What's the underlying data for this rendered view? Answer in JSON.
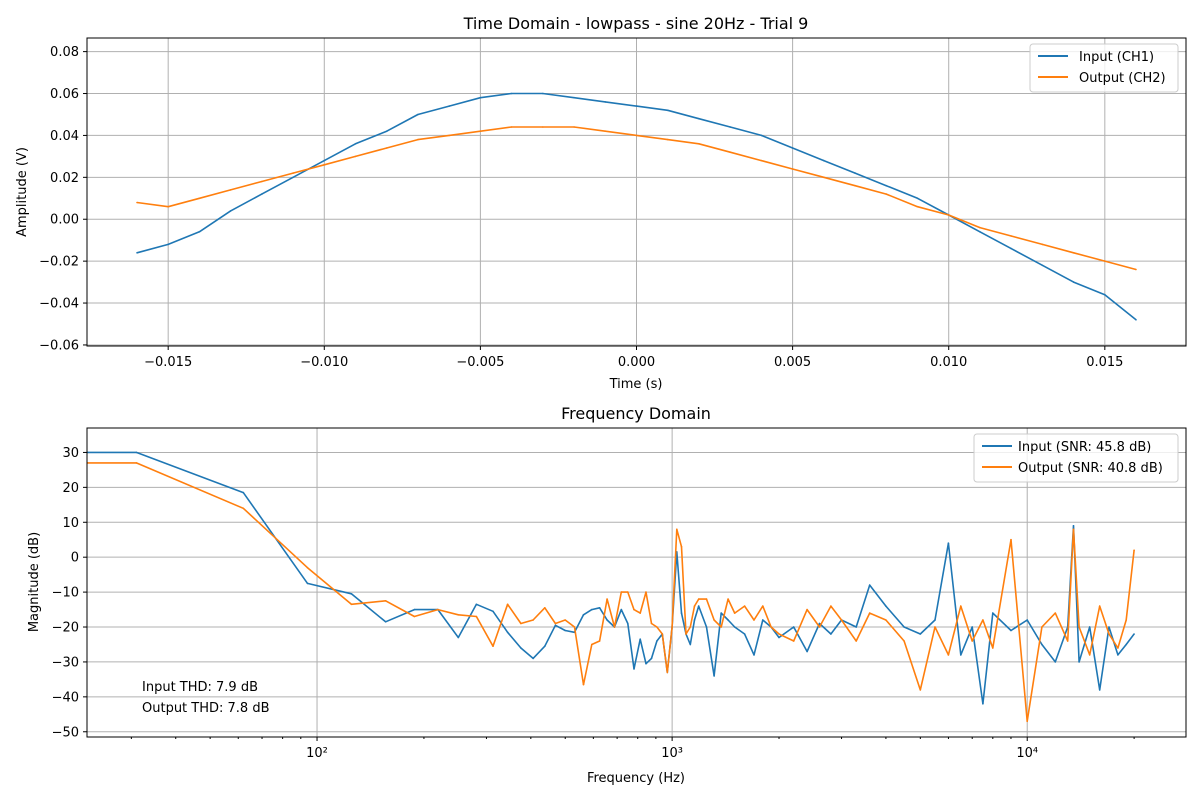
{
  "chart_data": [
    {
      "type": "line",
      "title": "Time Domain - lowpass - sine 20Hz - Trial 9",
      "xlabel": "Time (s)",
      "ylabel": "Amplitude (V)",
      "xlim": [
        -0.0176,
        0.0176
      ],
      "ylim": [
        -0.0605,
        0.0865
      ],
      "xticks": [
        -0.015,
        -0.01,
        -0.005,
        0.0,
        0.005,
        0.01,
        0.015
      ],
      "xtick_labels": [
        "−0.015",
        "−0.010",
        "−0.005",
        "0.000",
        "0.005",
        "0.010",
        "0.015"
      ],
      "yticks": [
        -0.06,
        -0.04,
        -0.02,
        0.0,
        0.02,
        0.04,
        0.06,
        0.08
      ],
      "ytick_labels": [
        "−0.06",
        "−0.04",
        "−0.02",
        "0.00",
        "0.02",
        "0.04",
        "0.06",
        "0.08"
      ],
      "grid": true,
      "legend_position": "top-right",
      "series": [
        {
          "name": "Input (CH1)",
          "color": "#1f77b4",
          "x": [
            -0.016,
            -0.015,
            -0.014,
            -0.013,
            -0.012,
            -0.011,
            -0.01,
            -0.009,
            -0.008,
            -0.007,
            -0.006,
            -0.005,
            -0.004,
            -0.003,
            -0.002,
            -0.001,
            0.0,
            0.001,
            0.002,
            0.003,
            0.004,
            0.005,
            0.006,
            0.007,
            0.008,
            0.009,
            0.01,
            0.011,
            0.012,
            0.013,
            0.014,
            0.015,
            0.016
          ],
          "y": [
            -0.016,
            -0.012,
            -0.006,
            0.004,
            0.012,
            0.02,
            0.028,
            0.036,
            0.042,
            0.05,
            0.054,
            0.058,
            0.06,
            0.06,
            0.058,
            0.056,
            0.054,
            0.052,
            0.048,
            0.044,
            0.04,
            0.034,
            0.028,
            0.022,
            0.016,
            0.01,
            0.002,
            -0.006,
            -0.014,
            -0.022,
            -0.03,
            -0.036,
            -0.048
          ]
        },
        {
          "name": "Output (CH2)",
          "color": "#ff7f0e",
          "x": [
            -0.016,
            -0.015,
            -0.014,
            -0.013,
            -0.012,
            -0.011,
            -0.01,
            -0.009,
            -0.008,
            -0.007,
            -0.006,
            -0.005,
            -0.004,
            -0.003,
            -0.002,
            -0.001,
            0.0,
            0.001,
            0.002,
            0.003,
            0.004,
            0.005,
            0.006,
            0.007,
            0.008,
            0.009,
            0.01,
            0.011,
            0.012,
            0.013,
            0.014,
            0.015,
            0.016
          ],
          "y": [
            0.008,
            0.006,
            0.01,
            0.014,
            0.018,
            0.022,
            0.026,
            0.03,
            0.034,
            0.038,
            0.04,
            0.042,
            0.044,
            0.044,
            0.044,
            0.042,
            0.04,
            0.038,
            0.036,
            0.032,
            0.028,
            0.024,
            0.02,
            0.016,
            0.012,
            0.006,
            0.002,
            -0.004,
            -0.008,
            -0.012,
            -0.016,
            -0.02,
            -0.024
          ]
        }
      ]
    },
    {
      "type": "line",
      "title": "Frequency Domain",
      "xlabel": "Frequency (Hz)",
      "ylabel": "Magnitude (dB)",
      "xscale": "log",
      "xlim": [
        22.5,
        28000
      ],
      "ylim": [
        -51.5,
        37
      ],
      "xticks": [
        100,
        1000,
        10000
      ],
      "xtick_labels": [
        "10²",
        "10³",
        "10⁴"
      ],
      "yticks": [
        -50,
        -40,
        -30,
        -20,
        -10,
        0,
        10,
        20,
        30
      ],
      "ytick_labels": [
        "−50",
        "−40",
        "−30",
        "−20",
        "−10",
        "0",
        "10",
        "20",
        "30"
      ],
      "grid": true,
      "legend_position": "top-right",
      "annotations": [
        "Input THD: 7.9 dB",
        "Output THD: 7.8 dB"
      ],
      "series": [
        {
          "name": "Input (SNR: 45.8 dB)",
          "color": "#1f77b4",
          "x": [
            22.5,
            31,
            62,
            94,
            125,
            156,
            188,
            219,
            250,
            281,
            313,
            344,
            375,
            406,
            438,
            469,
            500,
            531,
            563,
            594,
            625,
            656,
            688,
            719,
            750,
            781,
            813,
            844,
            875,
            906,
            938,
            969,
            1000,
            1031,
            1063,
            1094,
            1125,
            1156,
            1188,
            1250,
            1313,
            1375,
            1438,
            1500,
            1600,
            1700,
            1800,
            1900,
            2000,
            2200,
            2400,
            2600,
            2800,
            3000,
            3300,
            3600,
            4000,
            4500,
            5000,
            5500,
            6000,
            6500,
            7000,
            7500,
            8000,
            9000,
            10000,
            11000,
            12000,
            13000,
            13500,
            14000,
            15000,
            16000,
            17000,
            18000,
            19000,
            20000
          ],
          "y": [
            30,
            30,
            18.5,
            -7.5,
            -10.5,
            -18.5,
            -15,
            -15,
            -23,
            -13.5,
            -15.5,
            -21.5,
            -26,
            -29,
            -25.5,
            -19.5,
            -21,
            -21.5,
            -16.5,
            -15,
            -14.5,
            -18,
            -20,
            -15,
            -19,
            -32,
            -23.5,
            -30.5,
            -29,
            -24,
            -22,
            -33,
            -20,
            1.5,
            -16,
            -22,
            -25,
            -18,
            -14,
            -20,
            -34,
            -16,
            -18,
            -20,
            -22,
            -28,
            -18,
            -20,
            -23,
            -20,
            -27,
            -19,
            -22,
            -18,
            -20,
            -8,
            -14,
            -20,
            -22,
            -18,
            4,
            -28,
            -20,
            -42,
            -16,
            -21,
            -18,
            -25,
            -30,
            -20,
            9,
            -30,
            -20,
            -38,
            -20,
            -28,
            -25,
            -22
          ]
        },
        {
          "name": "Output (SNR: 40.8 dB)",
          "color": "#ff7f0e",
          "x": [
            22.5,
            31,
            62,
            94,
            125,
            156,
            188,
            219,
            250,
            281,
            313,
            344,
            375,
            406,
            438,
            469,
            500,
            531,
            563,
            594,
            625,
            656,
            688,
            719,
            750,
            781,
            813,
            844,
            875,
            906,
            938,
            969,
            1000,
            1031,
            1063,
            1094,
            1125,
            1156,
            1188,
            1250,
            1313,
            1375,
            1438,
            1500,
            1600,
            1700,
            1800,
            1900,
            2000,
            2200,
            2400,
            2600,
            2800,
            3000,
            3300,
            3600,
            4000,
            4500,
            5000,
            5500,
            6000,
            6500,
            7000,
            7500,
            8000,
            9000,
            10000,
            11000,
            12000,
            13000,
            13500,
            14000,
            15000,
            16000,
            17000,
            18000,
            19000,
            20000
          ],
          "y": [
            27,
            27,
            14,
            -3,
            -13.5,
            -12.5,
            -17,
            -15,
            -16.5,
            -17,
            -25.5,
            -13.5,
            -19,
            -18,
            -14.5,
            -19,
            -18,
            -20,
            -36.5,
            -25,
            -24,
            -12,
            -20,
            -10,
            -10,
            -15,
            -16,
            -10,
            -19,
            -20,
            -22,
            -33,
            -20,
            8,
            3,
            -22,
            -20,
            -14,
            -12,
            -12,
            -18,
            -20,
            -12,
            -16,
            -14,
            -18,
            -14,
            -20,
            -22,
            -24,
            -15,
            -20,
            -14,
            -18,
            -24,
            -16,
            -18,
            -24,
            -38,
            -20,
            -28,
            -14,
            -24,
            -18,
            -26,
            5,
            -47,
            -20,
            -16,
            -24,
            8,
            -20,
            -28,
            -14,
            -22,
            -26,
            -18,
            2
          ]
        }
      ]
    }
  ]
}
